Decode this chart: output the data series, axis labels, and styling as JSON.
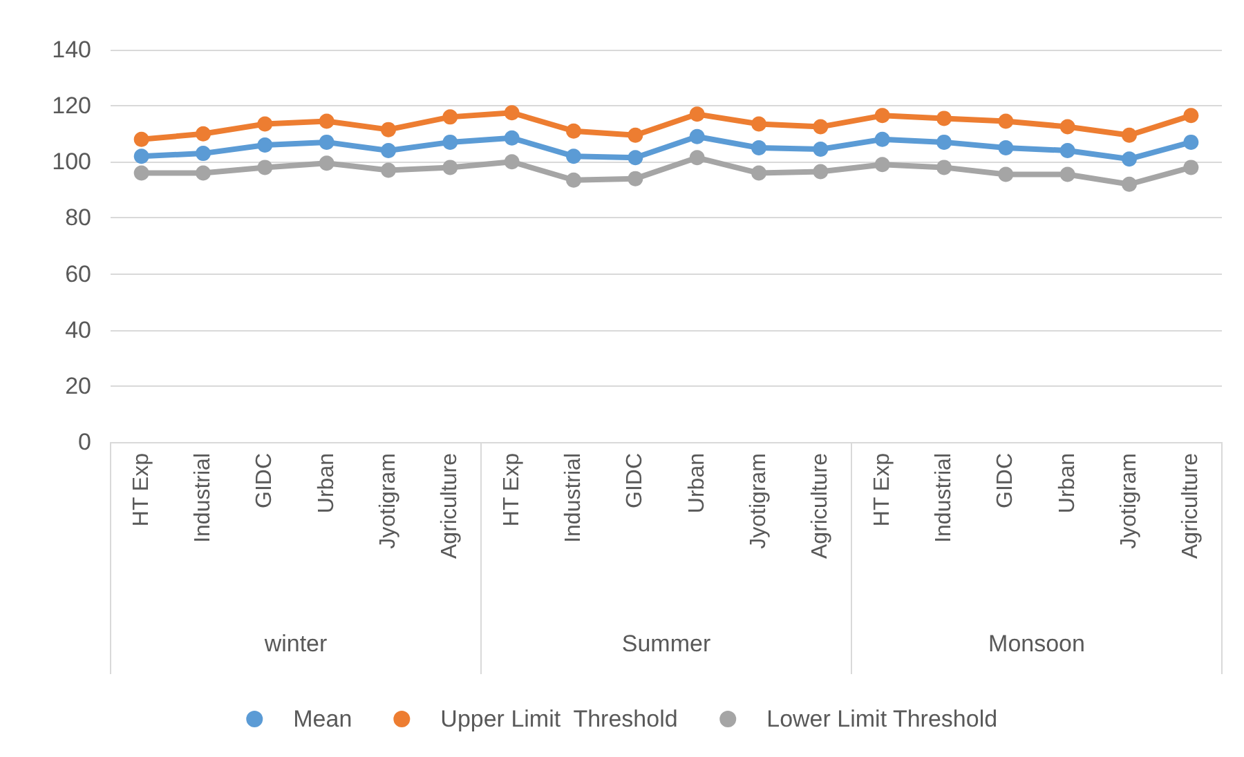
{
  "chart_data": {
    "type": "line",
    "categories": [
      "HT Exp",
      "Industrial",
      "GIDC",
      "Urban",
      "Jyotigram",
      "Agriculture",
      "HT Exp",
      "Industrial",
      "GIDC",
      "Urban",
      "Jyotigram",
      "Agriculture",
      "HT Exp",
      "Industrial",
      "GIDC",
      "Urban",
      "Jyotigram",
      "Agriculture"
    ],
    "series": [
      {
        "name": "Mean",
        "color": "#5b9bd5",
        "values": [
          102,
          103,
          106,
          107,
          104,
          107,
          108.5,
          102,
          101.5,
          109,
          105,
          104.5,
          108,
          107,
          105,
          104,
          101,
          107
        ]
      },
      {
        "name": "Upper Limit  Threshold",
        "color": "#ed7d31",
        "values": [
          108,
          110,
          113.5,
          114.5,
          111.5,
          116,
          117.5,
          111,
          109.5,
          117,
          113.5,
          112.5,
          116.5,
          115.5,
          114.5,
          112.5,
          109.5,
          116.5
        ]
      },
      {
        "name": "Lower Limit Threshold",
        "color": "#a5a5a5",
        "values": [
          96,
          96,
          98,
          99.5,
          97,
          98,
          100,
          93.5,
          94,
          101.5,
          96,
          96.5,
          99,
          98,
          95.5,
          95.5,
          92,
          98
        ]
      }
    ],
    "annotations": [
      "winter",
      "Summer",
      "Monsoon"
    ],
    "ylim": [
      0,
      140
    ],
    "yticks": [
      0,
      20,
      40,
      60,
      80,
      100,
      120,
      140
    ],
    "grid": "y",
    "legend": "bottom",
    "marker": "circle",
    "line_style": "solid"
  }
}
